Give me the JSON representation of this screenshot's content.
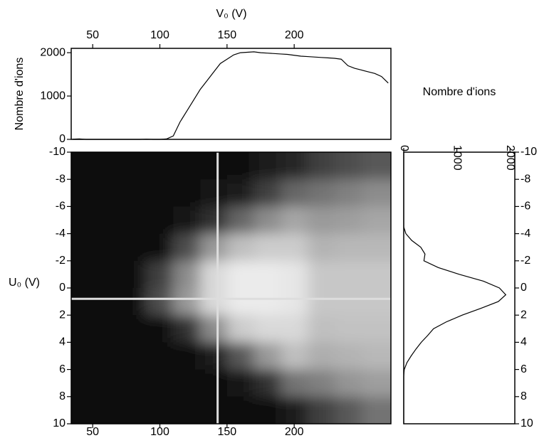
{
  "chart_data": [
    {
      "type": "line",
      "xlabel": "V₀ (V)",
      "ylabel": "Nombre d'ions",
      "color": "#000000",
      "x": [
        35,
        40,
        45,
        50,
        55,
        60,
        65,
        70,
        75,
        80,
        85,
        90,
        95,
        100,
        105,
        110,
        115,
        120,
        125,
        130,
        135,
        140,
        145,
        150,
        155,
        160,
        165,
        170,
        175,
        180,
        185,
        190,
        195,
        200,
        205,
        210,
        215,
        220,
        225,
        230,
        235,
        240,
        245,
        250,
        255,
        260,
        265,
        270
      ],
      "values": [
        5,
        10,
        0,
        0,
        0,
        0,
        0,
        0,
        0,
        0,
        0,
        5,
        0,
        0,
        10,
        80,
        400,
        650,
        900,
        1150,
        1350,
        1550,
        1750,
        1850,
        1950,
        2000,
        2010,
        2020,
        2000,
        1990,
        1980,
        1970,
        1960,
        1940,
        1920,
        1910,
        1900,
        1890,
        1880,
        1870,
        1850,
        1700,
        1640,
        1600,
        1560,
        1520,
        1450,
        1300
      ],
      "xlim": [
        34,
        272
      ],
      "xticks": [
        50,
        100,
        150,
        200
      ],
      "ylim": [
        0,
        2100
      ],
      "yticks": [
        0,
        1000,
        2000
      ]
    },
    {
      "type": "heatmap",
      "ylabel": "U₀ (V)",
      "x": [
        40,
        60,
        80,
        100,
        120,
        140,
        160,
        180,
        200,
        220,
        240,
        260
      ],
      "y": [
        -9,
        -7,
        -5,
        -3,
        -1,
        1,
        3,
        5,
        7,
        9
      ],
      "z": [
        [
          0.05,
          0.05,
          0.05,
          0.05,
          0.05,
          0.05,
          0.06,
          0.1,
          0.15,
          0.25,
          0.3,
          0.35
        ],
        [
          0.05,
          0.05,
          0.05,
          0.05,
          0.05,
          0.07,
          0.12,
          0.25,
          0.4,
          0.45,
          0.5,
          0.55
        ],
        [
          0.05,
          0.05,
          0.05,
          0.05,
          0.07,
          0.2,
          0.4,
          0.55,
          0.65,
          0.6,
          0.62,
          0.65
        ],
        [
          0.05,
          0.05,
          0.05,
          0.05,
          0.3,
          0.6,
          0.75,
          0.8,
          0.8,
          0.7,
          0.72,
          0.72
        ],
        [
          0.05,
          0.05,
          0.05,
          0.25,
          0.55,
          0.85,
          0.92,
          0.92,
          0.9,
          0.78,
          0.78,
          0.78
        ],
        [
          0.05,
          0.05,
          0.05,
          0.3,
          0.6,
          0.85,
          0.92,
          0.92,
          0.9,
          0.78,
          0.78,
          0.78
        ],
        [
          0.05,
          0.05,
          0.05,
          0.05,
          0.2,
          0.55,
          0.8,
          0.85,
          0.85,
          0.75,
          0.76,
          0.76
        ],
        [
          0.05,
          0.05,
          0.05,
          0.05,
          0.05,
          0.12,
          0.35,
          0.6,
          0.75,
          0.68,
          0.7,
          0.72
        ],
        [
          0.05,
          0.05,
          0.05,
          0.05,
          0.05,
          0.05,
          0.08,
          0.2,
          0.45,
          0.5,
          0.58,
          0.62
        ],
        [
          0.05,
          0.05,
          0.05,
          0.05,
          0.05,
          0.05,
          0.05,
          0.06,
          0.12,
          0.25,
          0.35,
          0.45
        ]
      ],
      "crosshair": {
        "x": 143,
        "y": 0.8,
        "color": "#dddddd"
      },
      "xlim": [
        34,
        272
      ],
      "xticks": [
        50,
        100,
        150,
        200
      ],
      "ylim": [
        -10,
        10
      ],
      "yticks": [
        -10,
        -8,
        -6,
        -4,
        -2,
        0,
        2,
        4,
        6,
        8,
        10
      ]
    },
    {
      "type": "line",
      "orientation": "horizontal",
      "xlabel": "Nombre d'ions",
      "color": "#000000",
      "y": [
        -10,
        -9.5,
        -9,
        -8.5,
        -8,
        -7.5,
        -7,
        -6.5,
        -6,
        -5.5,
        -5,
        -4.5,
        -4,
        -3.5,
        -3,
        -2.5,
        -2,
        -1.5,
        -1,
        -0.5,
        0,
        0.5,
        1,
        1.5,
        2,
        2.5,
        3,
        3.5,
        4,
        4.5,
        5,
        5.5,
        6,
        6.5,
        7,
        7.5,
        8,
        8.5,
        9,
        9.5,
        10
      ],
      "values": [
        0,
        0,
        0,
        0,
        0,
        0,
        0,
        0,
        0,
        0,
        0,
        0,
        40,
        150,
        320,
        400,
        380,
        650,
        1050,
        1500,
        1800,
        1920,
        1780,
        1450,
        1100,
        800,
        560,
        450,
        330,
        230,
        140,
        60,
        10,
        0,
        0,
        0,
        0,
        0,
        0,
        0,
        0
      ],
      "xlim": [
        0,
        2090
      ],
      "xticks": [
        0,
        1000,
        2000
      ],
      "ylim": [
        -10,
        10
      ],
      "yticks": [
        -10,
        -8,
        -6,
        -4,
        -2,
        0,
        2,
        4,
        6,
        8,
        10
      ]
    }
  ]
}
